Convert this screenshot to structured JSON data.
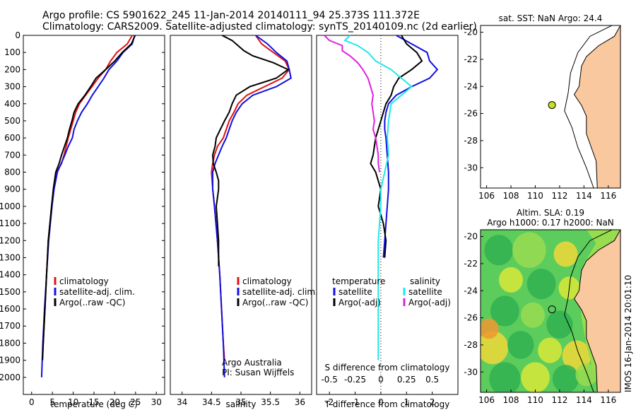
{
  "title": {
    "line1": "Argo profile: CS 5901622_245 11-Jan-2014 20140111_94 25.373S 111.372E",
    "line2": "Climatology: CARS2009. Satellite-adjusted climatology: synTS_20140109.nc (2d earlier)"
  },
  "side_text": "IMOS 16-Jan-2014 20:01:10",
  "chart_data": [
    {
      "type": "line",
      "xlabel": "temperature (deg C)",
      "ylabel": "",
      "xlim": [
        -2,
        32
      ],
      "ylim": [
        2100,
        0
      ],
      "xticks": [
        0,
        5,
        10,
        15,
        20,
        25,
        30
      ],
      "yticks": [
        0,
        100,
        200,
        300,
        400,
        500,
        600,
        700,
        800,
        900,
        1000,
        1100,
        1200,
        1300,
        1400,
        1500,
        1600,
        1700,
        1800,
        1900,
        2000
      ],
      "legend": [
        "climatology",
        "satellite-adj. clim.",
        "Argo(..raw -QC)"
      ],
      "colors": {
        "clim": "#e01010",
        "sat": "#1010e0",
        "argo": "#000000"
      },
      "series": [
        {
          "name": "climatology",
          "depth": [
            0,
            50,
            100,
            150,
            200,
            250,
            300,
            350,
            400,
            450,
            500,
            550,
            600,
            650,
            700,
            750,
            800,
            900,
            1000,
            1200,
            1400,
            1600,
            1800,
            1900
          ],
          "values": [
            24.2,
            23.0,
            20.5,
            19.0,
            17.8,
            16.0,
            14.5,
            13.0,
            11.5,
            10.6,
            10.0,
            9.4,
            8.8,
            8.3,
            7.8,
            7.2,
            6.0,
            5.3,
            4.8,
            4.0,
            3.6,
            3.2,
            2.8,
            2.6
          ]
        },
        {
          "name": "satellite-adj. clim.",
          "depth": [
            0,
            50,
            100,
            150,
            200,
            250,
            300,
            350,
            400,
            450,
            500,
            550,
            600,
            650,
            700,
            750,
            800,
            900,
            1000,
            1200,
            1400,
            1600,
            1800,
            2000
          ],
          "values": [
            24.8,
            24.2,
            22.0,
            20.5,
            18.6,
            17.4,
            16.0,
            14.6,
            13.4,
            12.0,
            11.0,
            10.2,
            9.8,
            8.8,
            8.0,
            7.1,
            6.2,
            5.4,
            4.9,
            4.1,
            3.6,
            3.1,
            2.7,
            2.4
          ]
        },
        {
          "name": "Argo(..raw -QC)",
          "depth": [
            0,
            50,
            100,
            150,
            200,
            250,
            300,
            350,
            400,
            450,
            500,
            550,
            600,
            650,
            700,
            750,
            800,
            900,
            1000,
            1200,
            1400,
            1600,
            1800,
            1900
          ],
          "values": [
            24.9,
            24.0,
            21.8,
            20.0,
            17.8,
            15.5,
            14.2,
            12.8,
            11.2,
            10.2,
            9.7,
            9.1,
            8.6,
            7.9,
            7.2,
            6.6,
            5.8,
            5.2,
            4.8,
            4.0,
            3.6,
            3.2,
            2.8,
            2.6
          ]
        }
      ]
    },
    {
      "type": "line",
      "xlabel": "salinity",
      "ylabel": "",
      "xlim": [
        33.8,
        36.2
      ],
      "ylim": [
        2100,
        0
      ],
      "xticks": [
        34,
        34.5,
        35,
        35.5,
        36
      ],
      "xticklabels": [
        "34",
        "34.5",
        "35",
        "35.5",
        "36"
      ],
      "legend": [
        "climatology",
        "satellite-adj. clim.",
        "Argo(..raw -QC)"
      ],
      "annotation": [
        "Argo Australia",
        "PI: Susan Wijffels"
      ],
      "series": [
        {
          "name": "climatology",
          "depth": [
            0,
            50,
            100,
            150,
            200,
            250,
            300,
            350,
            400,
            450,
            500,
            550,
            600,
            650,
            700,
            750,
            800,
            900,
            1000,
            1200,
            1400,
            1600,
            1800,
            1900
          ],
          "values": [
            35.25,
            35.35,
            35.55,
            35.75,
            35.82,
            35.7,
            35.4,
            35.1,
            34.95,
            34.88,
            34.8,
            34.75,
            34.7,
            34.6,
            34.55,
            34.52,
            34.5,
            34.52,
            34.55,
            34.6,
            34.64,
            34.67,
            34.7,
            34.72
          ]
        },
        {
          "name": "satellite-adj. clim.",
          "depth": [
            0,
            50,
            100,
            150,
            200,
            250,
            300,
            350,
            400,
            450,
            500,
            550,
            600,
            650,
            700,
            750,
            800,
            900,
            1000,
            1200,
            1400,
            1600,
            1800,
            2000
          ],
          "values": [
            35.25,
            35.45,
            35.6,
            35.78,
            35.82,
            35.85,
            35.6,
            35.2,
            35.02,
            34.92,
            34.85,
            34.8,
            34.75,
            34.68,
            34.62,
            34.56,
            34.52,
            34.52,
            34.55,
            34.6,
            34.64,
            34.67,
            34.7,
            34.72
          ]
        },
        {
          "name": "Argo(..raw -QC)",
          "depth": [
            0,
            30,
            60,
            90,
            120,
            160,
            200,
            250,
            300,
            350,
            400,
            450,
            500,
            550,
            600,
            650,
            700,
            750,
            800,
            850,
            900,
            950,
            1000,
            1100,
            1200,
            1300,
            1350
          ],
          "values": [
            34.68,
            34.85,
            34.95,
            35.05,
            35.2,
            35.55,
            35.8,
            35.6,
            35.15,
            34.92,
            34.85,
            34.8,
            34.72,
            34.65,
            34.58,
            34.56,
            34.52,
            34.53,
            34.58,
            34.62,
            34.62,
            34.6,
            34.58,
            34.6,
            34.62,
            34.62,
            34.62
          ]
        }
      ]
    },
    {
      "type": "line",
      "xlabel": "T difference from climatology",
      "title": "S difference from climatology",
      "xlim": [
        -2.5,
        3.0
      ],
      "ylim": [
        2100,
        0
      ],
      "xticks_bottom": [
        -2,
        -1,
        0,
        1,
        2
      ],
      "xticks_top": [
        -0.5,
        -0.25,
        0,
        0.25,
        0.5
      ],
      "xticklabels_top": [
        "-0.5",
        "-0.25",
        "0",
        "0.25",
        "0.5"
      ],
      "legend_groups": [
        {
          "header": "temperature",
          "items": [
            "satellite",
            "Argo(-adj)"
          ]
        },
        {
          "header": "salinity",
          "items": [
            "satellite",
            "Argo(-adj)"
          ]
        }
      ],
      "colors": {
        "t_sat": "#1010e0",
        "t_argo": "#000000",
        "s_sat": "#20e8e8",
        "s_argo": "#e020e0"
      },
      "series": [
        {
          "name": "temperature satellite",
          "depth": [
            0,
            50,
            100,
            150,
            200,
            250,
            300,
            350,
            400,
            450,
            500,
            550,
            600,
            700,
            800,
            900,
            1000,
            1100,
            1200,
            1300
          ],
          "values": [
            0.6,
            1.2,
            1.8,
            1.9,
            2.2,
            1.9,
            1.2,
            0.6,
            0.3,
            0.2,
            0.15,
            0.15,
            0.2,
            0.25,
            0.3,
            0.3,
            0.25,
            0.2,
            0.15,
            0.1
          ]
        },
        {
          "name": "temperature Argo(-adj)",
          "depth": [
            0,
            50,
            100,
            150,
            200,
            250,
            300,
            350,
            400,
            450,
            500,
            550,
            600,
            650,
            700,
            750,
            800,
            900,
            1000,
            1100,
            1200,
            1300
          ],
          "values": [
            0.8,
            1.0,
            1.4,
            1.6,
            1.2,
            0.7,
            0.5,
            0.4,
            0.2,
            0.1,
            0.0,
            -0.1,
            -0.2,
            -0.25,
            -0.3,
            -0.4,
            -0.2,
            0.0,
            -0.1,
            0.1,
            0.2,
            0.15
          ]
        },
        {
          "name": "salinity satellite",
          "depth": [
            0,
            30,
            60,
            100,
            150,
            200,
            250,
            300,
            350,
            400,
            500,
            600,
            700,
            800,
            900,
            1000,
            1200,
            1400,
            1600,
            1800,
            1900
          ],
          "values": [
            -1.2,
            -1.4,
            -0.9,
            -0.5,
            -0.2,
            0.4,
            0.8,
            1.2,
            0.8,
            0.4,
            0.3,
            0.25,
            0.3,
            0.15,
            0.0,
            0.0,
            -0.1,
            -0.1,
            -0.1,
            -0.1,
            -0.1
          ]
        },
        {
          "name": "salinity Argo(-adj)",
          "depth": [
            0,
            30,
            60,
            90,
            120,
            160,
            200,
            250,
            300,
            350,
            400,
            450,
            500,
            550,
            600,
            650,
            700,
            750,
            800
          ],
          "values": [
            -2.2,
            -2.0,
            -1.5,
            -1.5,
            -1.2,
            -0.9,
            -0.7,
            -0.5,
            -0.4,
            -0.3,
            -0.35,
            -0.3,
            -0.25,
            -0.3,
            -0.2,
            -0.15,
            -0.1,
            -0.1,
            -0.05
          ]
        }
      ]
    },
    {
      "type": "scatter",
      "title": "sat. SST: NaN Argo: 24.4",
      "xlim": [
        105.5,
        117
      ],
      "ylim": [
        -31.5,
        -19.5
      ],
      "xticks": [
        106,
        108,
        110,
        112,
        114,
        116
      ],
      "yticks": [
        -20,
        -22,
        -24,
        -26,
        -28,
        -30
      ],
      "point": {
        "lon": 111.372,
        "lat": -25.373
      },
      "land_color": "#fac89e"
    },
    {
      "type": "heatmap",
      "title": [
        "Altim. SLA: 0.19",
        "Argo h1000: 0.17 h2000: NaN"
      ],
      "xlim": [
        105.5,
        117
      ],
      "ylim": [
        -31.5,
        -19.5
      ],
      "xticks": [
        106,
        108,
        110,
        112,
        114,
        116
      ],
      "yticks": [
        -20,
        -22,
        -24,
        -26,
        -28,
        -30
      ],
      "point": {
        "lon": 111.372,
        "lat": -25.373
      },
      "land_color": "#fac89e",
      "sla_colors": [
        "#30b050",
        "#5ccc5c",
        "#98dc50",
        "#d8e838",
        "#f0d838",
        "#f09830"
      ]
    }
  ]
}
